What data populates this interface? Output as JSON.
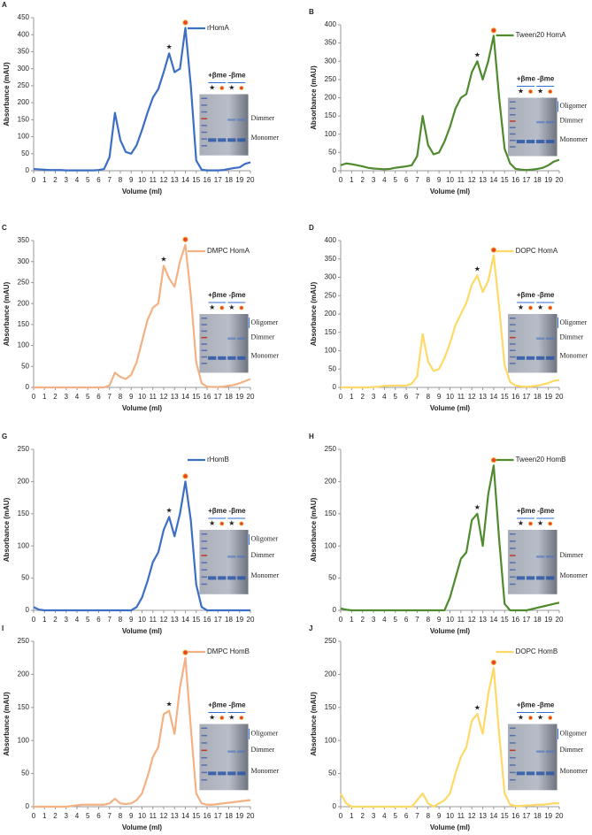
{
  "chart_data": [
    {
      "type": "line",
      "panel_label": "A",
      "xlabel": "Volume (ml)",
      "ylabel": "Absorbance (mAU)",
      "x": [
        0,
        0.5,
        1,
        1.5,
        2,
        2.5,
        3,
        3.5,
        4,
        4.5,
        5,
        5.5,
        6,
        6.5,
        7,
        7.5,
        8,
        8.5,
        9,
        9.5,
        10,
        10.5,
        11,
        11.5,
        12,
        12.5,
        13,
        13.5,
        14,
        14.5,
        15,
        15.5,
        16,
        16.5,
        17,
        17.5,
        18,
        18.5,
        19,
        19.5,
        20
      ],
      "series": [
        {
          "name": "rHomA",
          "color": "#3b6fc4",
          "values": [
            5,
            4,
            3,
            2,
            2,
            2,
            1,
            1,
            1,
            1,
            1,
            1,
            2,
            5,
            40,
            170,
            90,
            55,
            50,
            75,
            120,
            170,
            215,
            240,
            290,
            345,
            290,
            300,
            420,
            250,
            30,
            3,
            1,
            1,
            1,
            2,
            5,
            8,
            10,
            20,
            25
          ]
        }
      ],
      "xlim": [
        0,
        20
      ],
      "xticks": [
        0,
        1,
        2,
        3,
        4,
        5,
        6,
        7,
        8,
        9,
        10,
        11,
        12,
        13,
        14,
        15,
        16,
        17,
        18,
        19,
        20
      ],
      "ylim": [
        0,
        450
      ],
      "yticks": [
        0,
        50,
        100,
        150,
        200,
        250,
        300,
        350,
        400,
        450
      ],
      "inset": {
        "header": "+βme -βme",
        "bands": [
          "Dimmer",
          "Monomer"
        ]
      }
    },
    {
      "type": "line",
      "panel_label": "B",
      "xlabel": "Volume (ml)",
      "ylabel": "Absorbance (mAU)",
      "x": [
        0,
        0.5,
        1,
        1.5,
        2,
        2.5,
        3,
        3.5,
        4,
        4.5,
        5,
        5.5,
        6,
        6.5,
        7,
        7.5,
        8,
        8.5,
        9,
        9.5,
        10,
        10.5,
        11,
        11.5,
        12,
        12.5,
        13,
        13.5,
        14,
        14.5,
        15,
        15.5,
        16,
        16.5,
        17,
        17.5,
        18,
        18.5,
        19,
        19.5,
        20
      ],
      "series": [
        {
          "name": "Tween20 HomA",
          "color": "#4f8a2e",
          "values": [
            15,
            20,
            18,
            15,
            12,
            8,
            6,
            5,
            4,
            5,
            8,
            10,
            12,
            15,
            40,
            150,
            70,
            45,
            50,
            80,
            120,
            170,
            200,
            210,
            270,
            300,
            250,
            300,
            370,
            200,
            60,
            20,
            5,
            3,
            2,
            3,
            5,
            8,
            15,
            25,
            30
          ]
        }
      ],
      "xlim": [
        0,
        20
      ],
      "xticks": [
        0,
        1,
        2,
        3,
        4,
        5,
        6,
        7,
        8,
        9,
        10,
        11,
        12,
        13,
        14,
        15,
        16,
        17,
        18,
        19,
        20
      ],
      "ylim": [
        0,
        400
      ],
      "yticks": [
        0,
        50,
        100,
        150,
        200,
        250,
        300,
        350,
        400
      ],
      "inset": {
        "header": "+βme -βme",
        "bands": [
          "Oligomer",
          "Dimmer",
          "Monomer"
        ]
      }
    },
    {
      "type": "line",
      "panel_label": "C",
      "xlabel": "Volume (ml)",
      "ylabel": "Absorbance (mAU)",
      "x": [
        0,
        0.5,
        1,
        1.5,
        2,
        2.5,
        3,
        3.5,
        4,
        4.5,
        5,
        5.5,
        6,
        6.5,
        7,
        7.5,
        8,
        8.5,
        9,
        9.5,
        10,
        10.5,
        11,
        11.5,
        12,
        12.5,
        13,
        13.5,
        14,
        14.5,
        15,
        15.5,
        16,
        16.5,
        17,
        17.5,
        18,
        18.5,
        19,
        19.5,
        20
      ],
      "series": [
        {
          "name": "DMPC HomA",
          "color": "#f4b183",
          "values": [
            0,
            0,
            0,
            0,
            0,
            0,
            0,
            0,
            0,
            0,
            0,
            0,
            0,
            0,
            5,
            35,
            25,
            20,
            30,
            60,
            110,
            160,
            190,
            200,
            290,
            260,
            240,
            300,
            340,
            220,
            60,
            10,
            2,
            1,
            1,
            2,
            4,
            6,
            10,
            15,
            20
          ]
        }
      ],
      "xlim": [
        0,
        20
      ],
      "xticks": [
        0,
        1,
        2,
        3,
        4,
        5,
        6,
        7,
        8,
        9,
        10,
        11,
        12,
        13,
        14,
        15,
        16,
        17,
        18,
        19,
        20
      ],
      "ylim": [
        0,
        350
      ],
      "yticks": [
        0,
        50,
        100,
        150,
        200,
        250,
        300,
        350
      ],
      "inset": {
        "header": "+βme -βme",
        "bands": [
          "Oligomer",
          "Dimmer",
          "Monomer"
        ]
      }
    },
    {
      "type": "line",
      "panel_label": "D",
      "xlabel": "Volume (ml)",
      "ylabel": "Absorbance (mAU)",
      "x": [
        0,
        0.5,
        1,
        1.5,
        2,
        2.5,
        3,
        3.5,
        4,
        4.5,
        5,
        5.5,
        6,
        6.5,
        7,
        7.5,
        8,
        8.5,
        9,
        9.5,
        10,
        10.5,
        11,
        11.5,
        12,
        12.5,
        13,
        13.5,
        14,
        14.5,
        15,
        15.5,
        16,
        16.5,
        17,
        17.5,
        18,
        18.5,
        19,
        19.5,
        20
      ],
      "series": [
        {
          "name": "DOPC HomA",
          "color": "#ffd966",
          "values": [
            0,
            0,
            0,
            0,
            0,
            0,
            1,
            2,
            4,
            5,
            5,
            5,
            5,
            10,
            30,
            145,
            70,
            45,
            50,
            80,
            120,
            170,
            200,
            230,
            280,
            305,
            260,
            290,
            360,
            220,
            60,
            15,
            5,
            3,
            2,
            3,
            5,
            8,
            12,
            18,
            20
          ]
        }
      ],
      "xlim": [
        0,
        20
      ],
      "xticks": [
        0,
        1,
        2,
        3,
        4,
        5,
        6,
        7,
        8,
        9,
        10,
        11,
        12,
        13,
        14,
        15,
        16,
        17,
        18,
        19,
        20
      ],
      "ylim": [
        0,
        400
      ],
      "yticks": [
        0,
        50,
        100,
        150,
        200,
        250,
        300,
        350,
        400
      ],
      "inset": {
        "header": "+βme -βme",
        "bands": [
          "Oligomer",
          "Dimmer",
          "Monomer"
        ]
      }
    },
    {
      "type": "line",
      "panel_label": "G",
      "xlabel": "Volume (ml)",
      "ylabel": "Absorbance (mAU)",
      "x": [
        0,
        0.5,
        1,
        1.5,
        2,
        2.5,
        3,
        3.5,
        4,
        4.5,
        5,
        5.5,
        6,
        6.5,
        7,
        7.5,
        8,
        8.5,
        9,
        9.5,
        10,
        10.5,
        11,
        11.5,
        12,
        12.5,
        13,
        13.5,
        14,
        14.5,
        15,
        15.5,
        16,
        16.5,
        17,
        17.5,
        18,
        18.5,
        19,
        19.5,
        20
      ],
      "series": [
        {
          "name": "rHomB",
          "color": "#3b6fc4",
          "values": [
            5,
            1,
            0,
            0,
            0,
            0,
            0,
            0,
            0,
            0,
            0,
            0,
            0,
            0,
            0,
            0,
            0,
            0,
            0,
            5,
            20,
            45,
            75,
            90,
            125,
            145,
            115,
            150,
            200,
            140,
            40,
            5,
            0,
            0,
            0,
            0,
            0,
            0,
            0,
            0,
            0
          ]
        }
      ],
      "xlim": [
        0,
        20
      ],
      "xticks": [
        0,
        1,
        2,
        3,
        4,
        5,
        6,
        7,
        8,
        9,
        10,
        11,
        12,
        13,
        14,
        15,
        16,
        17,
        18,
        19,
        20
      ],
      "ylim": [
        0,
        250
      ],
      "yticks": [
        0,
        50,
        100,
        150,
        200,
        250
      ],
      "inset": {
        "header": "+βme -βme",
        "bands": [
          "Oligomer",
          "Dimmer",
          "Monomer"
        ]
      }
    },
    {
      "type": "line",
      "panel_label": "H",
      "xlabel": "Volume (ml)",
      "ylabel": "Absorbance (mAU)",
      "x": [
        0,
        0.5,
        1,
        1.5,
        2,
        2.5,
        3,
        3.5,
        4,
        4.5,
        5,
        5.5,
        6,
        6.5,
        7,
        7.5,
        8,
        8.5,
        9,
        9.5,
        10,
        10.5,
        11,
        11.5,
        12,
        12.5,
        13,
        13.5,
        14,
        14.5,
        15,
        15.5,
        16,
        16.5,
        17,
        17.5,
        18,
        18.5,
        19,
        19.5,
        20
      ],
      "series": [
        {
          "name": "Tween20 HomB",
          "color": "#4f8a2e",
          "values": [
            3,
            1,
            0,
            0,
            0,
            0,
            0,
            0,
            0,
            0,
            0,
            0,
            0,
            0,
            0,
            0,
            0,
            0,
            0,
            0,
            20,
            50,
            80,
            90,
            140,
            150,
            100,
            180,
            225,
            110,
            10,
            0,
            0,
            0,
            0,
            2,
            4,
            6,
            8,
            10,
            12
          ]
        }
      ],
      "xlim": [
        0,
        20
      ],
      "xticks": [
        0,
        1,
        2,
        3,
        4,
        5,
        6,
        7,
        8,
        9,
        10,
        11,
        12,
        13,
        14,
        15,
        16,
        17,
        18,
        19,
        20
      ],
      "ylim": [
        0,
        250
      ],
      "yticks": [
        0,
        50,
        100,
        150,
        200,
        250
      ],
      "inset": {
        "header": "+βme -βme",
        "bands": [
          "Dimmer",
          "Monomer"
        ]
      }
    },
    {
      "type": "line",
      "panel_label": "I",
      "xlabel": "Volume (ml)",
      "ylabel": "Absorbance (mAU)",
      "x": [
        0,
        0.5,
        1,
        1.5,
        2,
        2.5,
        3,
        3.5,
        4,
        4.5,
        5,
        5.5,
        6,
        6.5,
        7,
        7.5,
        8,
        8.5,
        9,
        9.5,
        10,
        10.5,
        11,
        11.5,
        12,
        12.5,
        13,
        13.5,
        14,
        14.5,
        15,
        15.5,
        16,
        16.5,
        17,
        17.5,
        18,
        18.5,
        19,
        19.5,
        20
      ],
      "series": [
        {
          "name": "DMPC HomB",
          "color": "#f4b183",
          "values": [
            0,
            0,
            0,
            0,
            0,
            0,
            0,
            1,
            2,
            3,
            3,
            3,
            3,
            3,
            5,
            12,
            5,
            4,
            5,
            10,
            20,
            45,
            75,
            90,
            140,
            145,
            110,
            180,
            225,
            120,
            20,
            5,
            3,
            3,
            4,
            5,
            6,
            7,
            8,
            9,
            10
          ]
        }
      ],
      "xlim": [
        0,
        20
      ],
      "xticks": [
        0,
        1,
        2,
        3,
        4,
        5,
        6,
        7,
        8,
        9,
        10,
        11,
        12,
        13,
        14,
        15,
        16,
        17,
        18,
        19,
        20
      ],
      "ylim": [
        0,
        250
      ],
      "yticks": [
        0,
        50,
        100,
        150,
        200,
        250
      ],
      "inset": {
        "header": "+βme -βme",
        "bands": [
          "Oligomer",
          "Dimmer",
          "Monomer"
        ]
      }
    },
    {
      "type": "line",
      "panel_label": "J",
      "xlabel": "Volume (ml)",
      "ylabel": "Absorbance (mAU)",
      "x": [
        0,
        0.5,
        1,
        1.5,
        2,
        2.5,
        3,
        3.5,
        4,
        4.5,
        5,
        5.5,
        6,
        6.5,
        7,
        7.5,
        8,
        8.5,
        9,
        9.5,
        10,
        10.5,
        11,
        11.5,
        12,
        12.5,
        13,
        13.5,
        14,
        14.5,
        15,
        15.5,
        16,
        16.5,
        17,
        17.5,
        18,
        18.5,
        19,
        19.5,
        20
      ],
      "series": [
        {
          "name": "DOPC HomB",
          "color": "#ffd966",
          "values": [
            20,
            5,
            0,
            0,
            0,
            0,
            0,
            0,
            0,
            0,
            0,
            0,
            0,
            0,
            10,
            20,
            5,
            0,
            5,
            10,
            20,
            50,
            75,
            90,
            130,
            140,
            110,
            170,
            210,
            110,
            20,
            3,
            1,
            1,
            2,
            2,
            3,
            3,
            4,
            5,
            5
          ]
        }
      ],
      "xlim": [
        0,
        20
      ],
      "xticks": [
        0,
        1,
        2,
        3,
        4,
        5,
        6,
        7,
        8,
        9,
        10,
        11,
        12,
        13,
        14,
        15,
        16,
        17,
        18,
        19,
        20
      ],
      "ylim": [
        0,
        250
      ],
      "yticks": [
        0,
        50,
        100,
        150,
        200,
        250
      ],
      "inset": {
        "header": "+βme -βme",
        "bands": [
          "Oligomer",
          "Dimmer",
          "Monomer"
        ]
      }
    }
  ]
}
